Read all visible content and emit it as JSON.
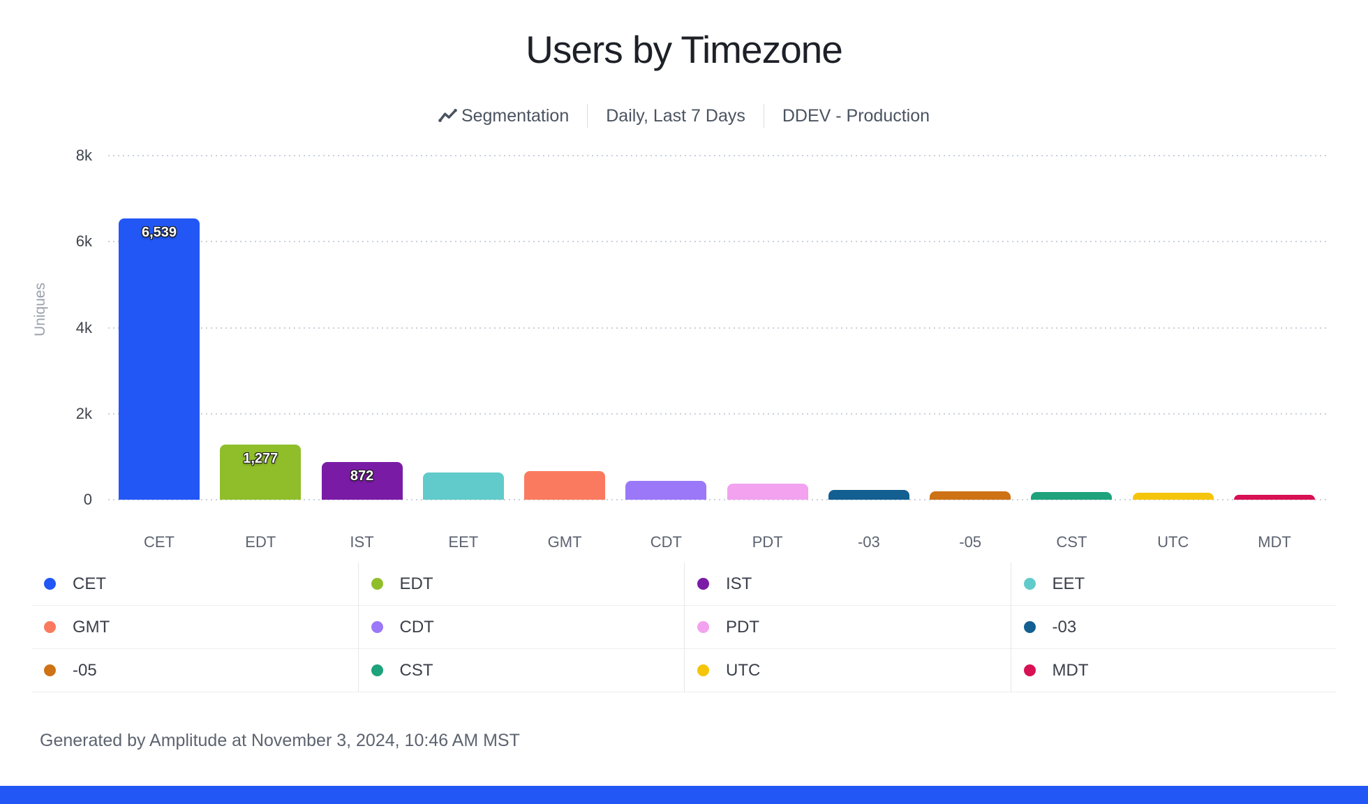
{
  "header": {
    "title": "Users by Timezone",
    "meta": [
      {
        "icon": "line-chart-icon",
        "label": "Segmentation"
      },
      {
        "label": "Daily, Last 7 Days"
      },
      {
        "label": "DDEV - Production"
      }
    ]
  },
  "chart_data": {
    "type": "bar",
    "title": "Users by Timezone",
    "xlabel": "",
    "ylabel": "Uniques",
    "ylim": [
      0,
      8000
    ],
    "yticks": [
      {
        "value": 0,
        "label": "0"
      },
      {
        "value": 2000,
        "label": "2k"
      },
      {
        "value": 4000,
        "label": "4k"
      },
      {
        "value": 6000,
        "label": "6k"
      },
      {
        "value": 8000,
        "label": "8k"
      }
    ],
    "grid": "horizontal dotted",
    "legend_position": "bottom-table-4-columns",
    "categories": [
      "CET",
      "EDT",
      "IST",
      "EET",
      "GMT",
      "CDT",
      "PDT",
      "-03",
      "-05",
      "CST",
      "UTC",
      "MDT"
    ],
    "values": [
      6539,
      1277,
      872,
      640,
      665,
      445,
      380,
      235,
      195,
      185,
      160,
      110
    ],
    "value_labels": [
      "6,539",
      "1,277",
      "872",
      "",
      "",
      "",
      "",
      "",
      "",
      "",
      "",
      ""
    ],
    "colors": [
      "#2257f5",
      "#8fbe2a",
      "#7a1ba6",
      "#60cbca",
      "#fa7a5f",
      "#9a78f8",
      "#f2a2ee",
      "#135f92",
      "#ce7216",
      "#1ea37c",
      "#f5c50c",
      "#d81054"
    ]
  },
  "legend": {
    "items": [
      {
        "label": "CET",
        "color": "#2257f5"
      },
      {
        "label": "EDT",
        "color": "#8fbe2a"
      },
      {
        "label": "IST",
        "color": "#7a1ba6"
      },
      {
        "label": "EET",
        "color": "#60cbca"
      },
      {
        "label": "GMT",
        "color": "#fa7a5f"
      },
      {
        "label": "CDT",
        "color": "#9a78f8"
      },
      {
        "label": "PDT",
        "color": "#f2a2ee"
      },
      {
        "label": "-03",
        "color": "#135f92"
      },
      {
        "label": "-05",
        "color": "#ce7216"
      },
      {
        "label": "CST",
        "color": "#1ea37c"
      },
      {
        "label": "UTC",
        "color": "#f5c50c"
      },
      {
        "label": "MDT",
        "color": "#d81054"
      }
    ]
  },
  "footer": {
    "text": "Generated by Amplitude at November 3, 2024, 10:46 AM MST"
  },
  "brand": {
    "bar_color": "#2257f5",
    "icon_color": "#4b5360"
  }
}
